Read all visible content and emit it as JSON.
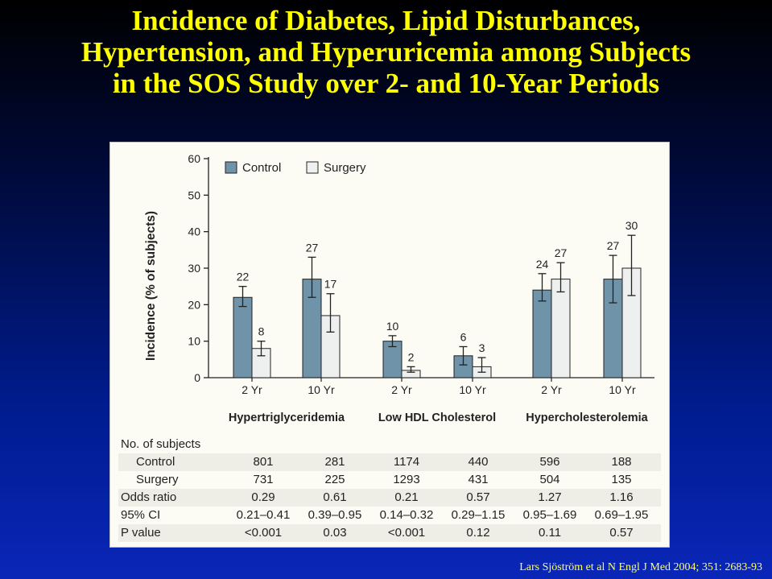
{
  "slide": {
    "title_lines": [
      "Incidence of Diabetes, Lipid Disturbances,",
      "Hypertension, and Hyperuricemia among Subjects",
      "in the SOS Study over 2- and 10-Year Periods"
    ],
    "citation": "Lars Sjöström et al N Engl J Med 2004; 351: 2683-93"
  },
  "colors": {
    "control": "#6f93a8",
    "surgery": "#eef0ef",
    "title": "#ffff00"
  },
  "chart_data": {
    "type": "bar",
    "ylabel": "Incidence (% of subjects)",
    "ylim": [
      0,
      60
    ],
    "yticks": [
      0,
      10,
      20,
      30,
      40,
      50,
      60
    ],
    "legend_placement": "top-left",
    "groups": [
      "Hypertriglyceridemia",
      "Low HDL Cholesterol",
      "Hypercholesterolemia"
    ],
    "categories": [
      "2 Yr",
      "10 Yr",
      "2 Yr",
      "10 Yr",
      "2 Yr",
      "10 Yr"
    ],
    "series": [
      {
        "name": "Control",
        "values": [
          22,
          27,
          10,
          6,
          24,
          27
        ],
        "ci_low": [
          19.5,
          22,
          8.5,
          3.5,
          21,
          20.5
        ],
        "ci_high": [
          25,
          33,
          11.5,
          8.5,
          28.5,
          33.5
        ]
      },
      {
        "name": "Surgery",
        "values": [
          8,
          17,
          2,
          3,
          27,
          30
        ],
        "ci_low": [
          6,
          12.5,
          1.5,
          1.5,
          23.5,
          22.5
        ],
        "ci_high": [
          10,
          23,
          3,
          5.5,
          31.5,
          39
        ]
      }
    ]
  },
  "stats_table": {
    "header": "No. of subjects",
    "rows": [
      {
        "label": "Control",
        "indent": true,
        "values": [
          "801",
          "281",
          "1174",
          "440",
          "596",
          "188"
        ]
      },
      {
        "label": "Surgery",
        "indent": true,
        "values": [
          "731",
          "225",
          "1293",
          "431",
          "504",
          "135"
        ]
      },
      {
        "label": "Odds ratio",
        "indent": false,
        "values": [
          "0.29",
          "0.61",
          "0.21",
          "0.57",
          "1.27",
          "1.16"
        ]
      },
      {
        "label": "95% CI",
        "indent": false,
        "values": [
          "0.21–0.41",
          "0.39–0.95",
          "0.14–0.32",
          "0.29–1.15",
          "0.95–1.69",
          "0.69–1.95"
        ]
      },
      {
        "label": "P value",
        "indent": false,
        "values": [
          "<0.001",
          "0.03",
          "<0.001",
          "0.12",
          "0.11",
          "0.57"
        ]
      }
    ]
  }
}
